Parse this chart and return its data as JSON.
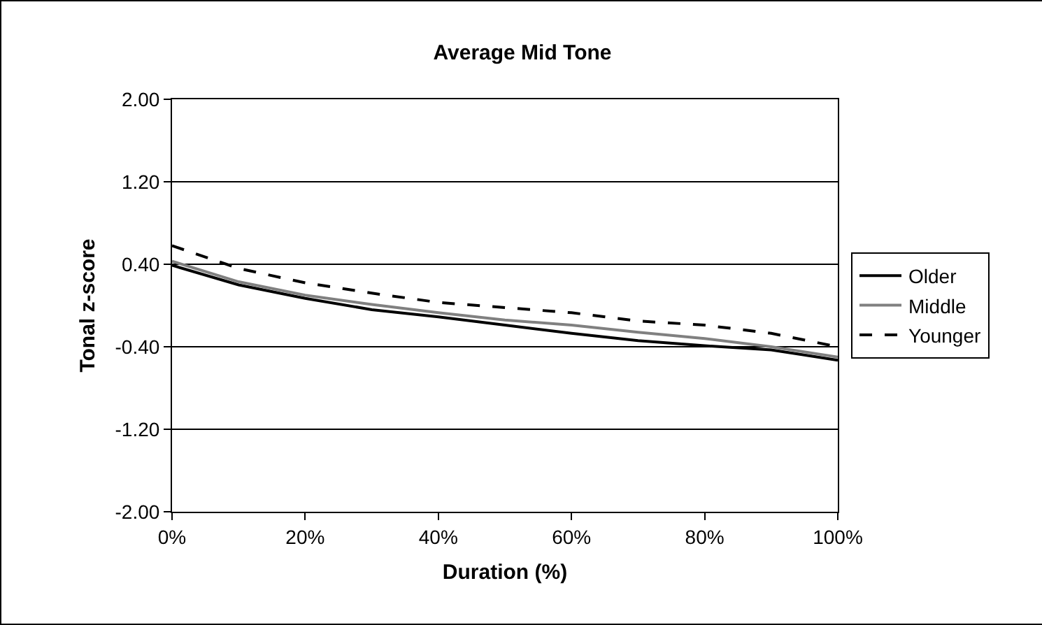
{
  "chart_data": {
    "type": "line",
    "title": "Average Mid Tone",
    "xlabel": "Duration (%)",
    "ylabel": "Tonal z-score",
    "x": [
      0,
      10,
      20,
      30,
      40,
      50,
      60,
      70,
      80,
      90,
      100
    ],
    "series": [
      {
        "name": "Older",
        "color": "#000000",
        "line_style": "solid",
        "values": [
          0.39,
          0.2,
          0.07,
          -0.04,
          -0.11,
          -0.19,
          -0.27,
          -0.34,
          -0.39,
          -0.43,
          -0.53
        ]
      },
      {
        "name": "Middle",
        "color": "#808080",
        "line_style": "solid",
        "values": [
          0.43,
          0.23,
          0.1,
          0.01,
          -0.07,
          -0.14,
          -0.19,
          -0.26,
          -0.32,
          -0.4,
          -0.5
        ]
      },
      {
        "name": "Younger",
        "color": "#000000",
        "line_style": "dashed",
        "values": [
          0.58,
          0.36,
          0.22,
          0.12,
          0.03,
          -0.02,
          -0.07,
          -0.15,
          -0.19,
          -0.27,
          -0.4
        ]
      }
    ],
    "xlim": [
      0,
      100
    ],
    "xticks": [
      {
        "value": 0,
        "label": "0%"
      },
      {
        "value": 20,
        "label": "20%"
      },
      {
        "value": 40,
        "label": "40%"
      },
      {
        "value": 60,
        "label": "60%"
      },
      {
        "value": 80,
        "label": "80%"
      },
      {
        "value": 100,
        "label": "100%"
      }
    ],
    "ylim": [
      -2,
      2
    ],
    "yticks": [
      {
        "value": -2,
        "label": "-2.00"
      },
      {
        "value": -1.2,
        "label": "-1.20"
      },
      {
        "value": -0.4,
        "label": "-0.40"
      },
      {
        "value": 0.4,
        "label": "0.40"
      },
      {
        "value": 1.2,
        "label": "1.20"
      },
      {
        "value": 2,
        "label": "2.00"
      }
    ],
    "grid": "y",
    "legend": "right",
    "marker": "none"
  }
}
